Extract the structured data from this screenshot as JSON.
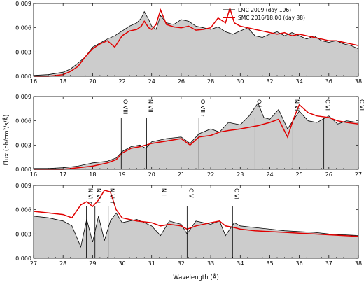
{
  "figure": {
    "xlabel": "Wavelength (Å)",
    "ylabel": "Flux (ph/cm²/s/Å)"
  },
  "legend": {
    "placement": "top-right",
    "entries": [
      {
        "label": "LMC 2009 (day 196)",
        "color": "#000000"
      },
      {
        "label": "SMC 2016/18.00 (day 88)",
        "color": "#e00000"
      }
    ]
  },
  "colors": {
    "fill": "#cccccc",
    "lmc_line": "#000000",
    "smc_line": "#e00000"
  },
  "chart_data": [
    {
      "type": "line",
      "xlim": [
        16,
        38
      ],
      "ylim": [
        0,
        0.009
      ],
      "xticks": [
        "16",
        "18",
        "20",
        "22",
        "24",
        "26",
        "28",
        "30",
        "32",
        "34",
        "36",
        "38"
      ],
      "yticks": [
        "0.000",
        "0.003",
        "0.006",
        "0.009"
      ],
      "series": [
        {
          "name": "LMC 2009 (day 196)",
          "filled": true,
          "x": [
            16,
            17,
            18,
            18.5,
            19,
            19.5,
            20,
            20.5,
            21,
            21.5,
            22,
            22.5,
            23,
            23.3,
            23.5,
            23.8,
            24,
            24.3,
            24.6,
            25,
            25.5,
            26,
            26.5,
            27,
            27.5,
            28,
            28.5,
            29,
            29.5,
            30,
            30.5,
            31,
            31.5,
            32,
            32.5,
            33,
            33.5,
            34,
            34.5,
            35,
            35.5,
            36,
            36.5,
            37,
            37.5,
            38
          ],
          "y": [
            0.0001,
            0.0002,
            0.0005,
            0.0009,
            0.0016,
            0.0024,
            0.0036,
            0.0041,
            0.0046,
            0.005,
            0.0056,
            0.0062,
            0.0066,
            0.0072,
            0.008,
            0.007,
            0.0062,
            0.0058,
            0.0075,
            0.0066,
            0.0064,
            0.007,
            0.0068,
            0.0062,
            0.006,
            0.0058,
            0.0061,
            0.0055,
            0.0052,
            0.0056,
            0.006,
            0.005,
            0.0048,
            0.0052,
            0.0055,
            0.005,
            0.0054,
            0.005,
            0.0046,
            0.005,
            0.0044,
            0.0042,
            0.0044,
            0.004,
            0.0038,
            0.0034
          ]
        },
        {
          "name": "SMC 2016/18.00 (day 88)",
          "filled": false,
          "x": [
            16,
            17,
            18,
            18.5,
            19,
            19.5,
            20,
            20.5,
            21,
            21.5,
            22,
            22.5,
            23,
            23.3,
            23.5,
            23.8,
            24,
            24.3,
            24.6,
            25,
            25.5,
            26,
            26.5,
            27,
            27.5,
            28,
            28.5,
            29,
            29.3,
            29.6,
            30,
            30.5,
            31,
            31.5,
            32,
            32.5,
            33,
            33.5,
            34,
            34.5,
            35,
            35.5,
            36,
            36.5,
            37,
            37.5,
            38
          ],
          "y": [
            0.0,
            0.0,
            0.0002,
            0.0006,
            0.0012,
            0.0024,
            0.0034,
            0.004,
            0.0044,
            0.0036,
            0.005,
            0.0056,
            0.0058,
            0.0062,
            0.0068,
            0.006,
            0.0058,
            0.0064,
            0.0082,
            0.0064,
            0.0061,
            0.006,
            0.0062,
            0.0057,
            0.0058,
            0.006,
            0.0072,
            0.0066,
            0.0084,
            0.0066,
            0.0062,
            0.006,
            0.0058,
            0.0056,
            0.0054,
            0.0052,
            0.0054,
            0.005,
            0.0052,
            0.005,
            0.0048,
            0.0046,
            0.0044,
            0.0044,
            0.0042,
            0.004,
            0.0038
          ]
        }
      ]
    },
    {
      "type": "line",
      "xlim": [
        16,
        27
      ],
      "ylim": [
        0,
        0.009
      ],
      "xticks": [
        "16",
        "17",
        "18",
        "19",
        "20",
        "21",
        "22",
        "23",
        "24",
        "25",
        "26",
        "27"
      ],
      "yticks": [
        "0.000",
        "0.003",
        "0.006",
        "0.009"
      ],
      "series": [
        {
          "name": "LMC 2009 (day 196)",
          "filled": true,
          "x": [
            16,
            16.5,
            17,
            17.5,
            18,
            18.5,
            18.8,
            19,
            19.3,
            19.6,
            19.8,
            20,
            20.5,
            21,
            21.3,
            21.6,
            22,
            22.3,
            22.6,
            23,
            23.3,
            23.6,
            23.8,
            24,
            24.3,
            24.6,
            25,
            25.3,
            25.6,
            26,
            26.3,
            26.6,
            27
          ],
          "y": [
            0.0001,
            0.0001,
            0.0002,
            0.0004,
            0.0008,
            0.001,
            0.0014,
            0.0022,
            0.0028,
            0.003,
            0.0026,
            0.0034,
            0.0038,
            0.004,
            0.0032,
            0.0044,
            0.005,
            0.0046,
            0.0058,
            0.0055,
            0.0066,
            0.0082,
            0.0064,
            0.0062,
            0.0074,
            0.005,
            0.0072,
            0.006,
            0.0058,
            0.0066,
            0.0056,
            0.006,
            0.0058
          ]
        },
        {
          "name": "SMC 2016/18.00 (day 88)",
          "filled": false,
          "x": [
            16,
            16.5,
            17,
            17.5,
            18,
            18.5,
            18.8,
            19,
            19.3,
            19.6,
            19.8,
            20,
            20.5,
            21,
            21.3,
            21.6,
            22,
            22.3,
            22.6,
            23,
            23.3,
            23.6,
            23.8,
            24,
            24.3,
            24.6,
            24.8,
            25,
            25.3,
            25.6,
            26,
            26.3,
            26.6,
            27
          ],
          "y": [
            0.0,
            0.0,
            0.0,
            0.0002,
            0.0004,
            0.0008,
            0.0012,
            0.002,
            0.0026,
            0.0028,
            0.003,
            0.0032,
            0.0035,
            0.0038,
            0.003,
            0.004,
            0.0042,
            0.0046,
            0.0048,
            0.005,
            0.0052,
            0.0054,
            0.0056,
            0.0058,
            0.0062,
            0.004,
            0.0062,
            0.008,
            0.007,
            0.0066,
            0.0064,
            0.006,
            0.0058,
            0.0056
          ]
        }
      ]
    },
    {
      "type": "line",
      "xlim": [
        27,
        38
      ],
      "ylim": [
        0,
        0.009
      ],
      "xticks": [
        "27",
        "28",
        "29",
        "30",
        "31",
        "32",
        "33",
        "34",
        "35",
        "36",
        "37",
        "38"
      ],
      "yticks": [
        "0.000",
        "0.003",
        "0.006",
        "0.009"
      ],
      "series": [
        {
          "name": "LMC 2009 (day 196)",
          "filled": true,
          "x": [
            27,
            27.5,
            28,
            28.3,
            28.6,
            28.8,
            29,
            29.2,
            29.4,
            29.6,
            29.8,
            30,
            30.5,
            31,
            31.3,
            31.6,
            32,
            32.2,
            32.5,
            33,
            33.3,
            33.5,
            33.8,
            34,
            34.5,
            35,
            35.5,
            36,
            36.5,
            37,
            37.5,
            38
          ],
          "y": [
            0.0052,
            0.005,
            0.0046,
            0.004,
            0.0014,
            0.0048,
            0.002,
            0.0052,
            0.0022,
            0.0046,
            0.0056,
            0.0044,
            0.0048,
            0.004,
            0.0028,
            0.0046,
            0.0042,
            0.003,
            0.0046,
            0.0042,
            0.0046,
            0.0028,
            0.0044,
            0.004,
            0.0038,
            0.0036,
            0.0034,
            0.0033,
            0.0032,
            0.003,
            0.0029,
            0.0028
          ]
        },
        {
          "name": "SMC 2016/18.00 (day 88)",
          "filled": false,
          "x": [
            27,
            27.5,
            28,
            28.3,
            28.6,
            28.8,
            29,
            29.2,
            29.4,
            29.6,
            29.8,
            30,
            30.5,
            31,
            31.3,
            31.6,
            32,
            32.2,
            32.5,
            33,
            33.3,
            33.5,
            33.8,
            34,
            34.5,
            35,
            35.5,
            36,
            36.5,
            37,
            37.5,
            38
          ],
          "y": [
            0.0058,
            0.0056,
            0.0054,
            0.005,
            0.0066,
            0.007,
            0.0064,
            0.0072,
            0.0084,
            0.0082,
            0.006,
            0.005,
            0.0046,
            0.0044,
            0.004,
            0.0042,
            0.004,
            0.0036,
            0.004,
            0.0044,
            0.0046,
            0.004,
            0.0038,
            0.0036,
            0.0034,
            0.0033,
            0.0032,
            0.0031,
            0.003,
            0.0029,
            0.0028,
            0.0027
          ]
        }
      ],
      "annotations": []
    }
  ],
  "annotations": {
    "panel_2": [
      {
        "label": "O VIII",
        "x": 18.97
      },
      {
        "label": "N VII",
        "x": 19.83
      },
      {
        "label": "O VII r",
        "x": 21.6
      },
      {
        "label": "O I",
        "x": 23.5
      },
      {
        "label": "N VI",
        "x": 24.78
      },
      {
        "label": "C VI",
        "x": 25.83
      },
      {
        "label": "C VI",
        "x": 26.99
      }
    ],
    "panel_3": [
      {
        "label": "N VI r",
        "x": 28.79
      },
      {
        "label": "N VI i",
        "x": 29.08
      },
      {
        "label": "N VI f",
        "x": 29.53
      },
      {
        "label": "N I",
        "x": 31.28
      },
      {
        "label": "C V",
        "x": 32.2
      },
      {
        "label": "C VI",
        "x": 33.74
      }
    ]
  }
}
